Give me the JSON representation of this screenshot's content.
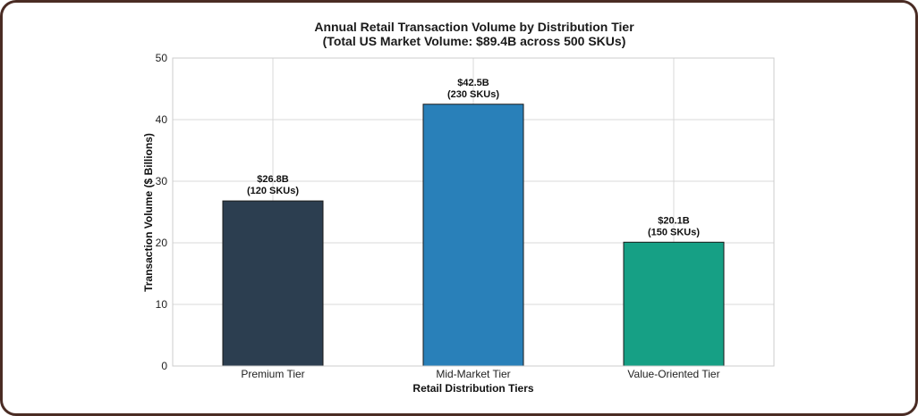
{
  "chart_data": {
    "type": "bar",
    "title": "Annual Retail Transaction Volume by Distribution Tier",
    "subtitle": "(Total US Market Volume: $89.4B across 500 SKUs)",
    "xlabel": "Retail Distribution Tiers",
    "ylabel": "Transaction Volume ($ Billions)",
    "ylim": [
      0,
      50
    ],
    "yticks": [
      0,
      10,
      20,
      30,
      40,
      50
    ],
    "grid": true,
    "categories": [
      "Premium Tier",
      "Mid-Market Tier",
      "Value-Oriented Tier"
    ],
    "values": [
      26.8,
      42.5,
      20.1
    ],
    "colors": [
      "#2c3e50",
      "#2980b9",
      "#16a085"
    ],
    "data_labels": [
      {
        "value": "$26.8B",
        "skus": "(120 SKUs)"
      },
      {
        "value": "$42.5B",
        "skus": "(230 SKUs)"
      },
      {
        "value": "$20.1B",
        "skus": "(150 SKUs)"
      }
    ]
  }
}
